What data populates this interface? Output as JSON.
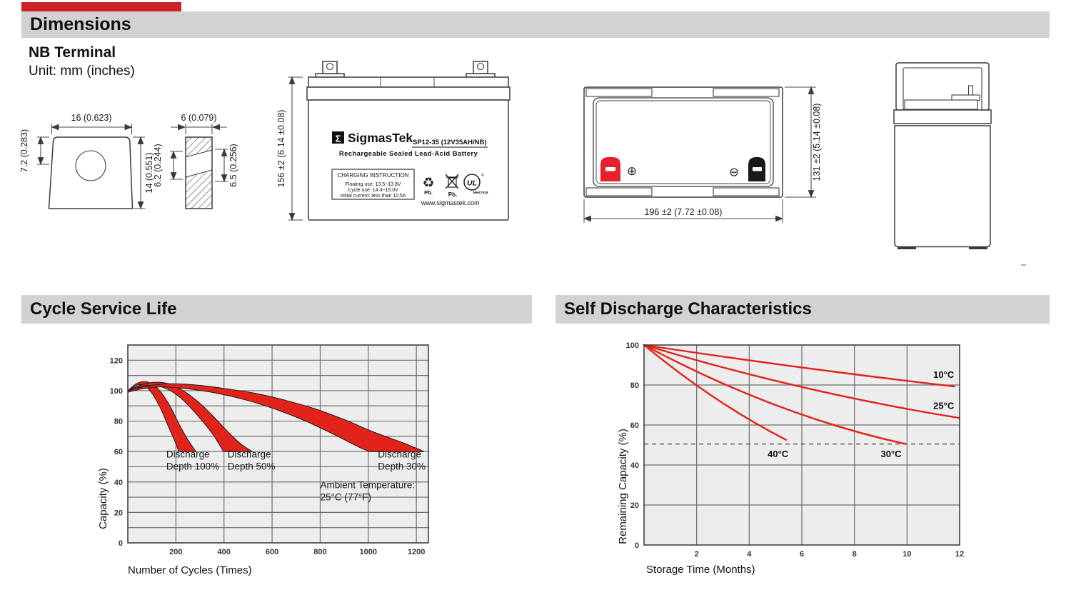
{
  "colors": {
    "accent_red": "#cb2128",
    "chart_red": "#e2231a",
    "terminal_red": "#e8202b",
    "header_bg": "#d2d2d2",
    "chart_bg": "#ededed",
    "grid": "#6e6e6e"
  },
  "sections": {
    "dimensions": "Dimensions",
    "cycle": "Cycle Service Life",
    "self_discharge": "Self Discharge Characteristics"
  },
  "dimensions": {
    "terminal_type": "NB Terminal",
    "unit_note": "Unit: mm (inches)",
    "terminal_front": {
      "top": "16 (0.623)",
      "left": "7.2 (0.283)",
      "right": "14 (0.551)"
    },
    "terminal_side": {
      "top": "6 (0.079)",
      "left": "6.2 (0.244)",
      "right": "6.5 (0.256)"
    },
    "front_view": {
      "height": "156 ±2 (6.14 ±0.08)",
      "logo_sigma": "Σ",
      "brand": "SigmasTek",
      "model": "SP12-35 (12V35AH/NB)",
      "subtitle": "Rechargeable Sealed Lead-Acid Battery",
      "charging_title": "CHARGING INSTRUCTION",
      "charging_lines": [
        "Floating use: 13.5~13.8V",
        "Cycle use: 14.4~15.0V",
        "Initial current: less than 10.5A"
      ],
      "recycle_mark": "♻",
      "pb_recycle": "Pb.",
      "pb_bin": "Pb.",
      "ul_mark": "UL",
      "ul_reg": "®",
      "ul_code": "MH47929",
      "website": "www.sigmastek.com"
    },
    "top_view": {
      "height": "131 ±2 (5.14 ±0.08)",
      "width": "196 ±2 (7.72 ±0.08)",
      "positive_mark": "⊕",
      "negative_mark": "⊖"
    }
  },
  "chart_data": [
    {
      "id": "cycle-service-life",
      "type": "area",
      "title": "Cycle Service Life",
      "xlabel": "Number of Cycles (Times)",
      "ylabel": "Capacity (%)",
      "xlim": [
        0,
        1250
      ],
      "ylim": [
        0,
        130
      ],
      "x_ticks": [
        200,
        400,
        600,
        800,
        1000,
        1200
      ],
      "y_ticks": [
        0,
        20,
        40,
        60,
        80,
        100,
        120
      ],
      "x_grid_step": 200,
      "y_grid_step": 10,
      "grid": true,
      "legend": false,
      "plot_bg": "#ededed",
      "grid_color": "#6e6e6e",
      "series": [
        {
          "name": "Discharge Depth 100%",
          "color": "#e2231a",
          "upper": [
            [
              0,
              100
            ],
            [
              35,
              104.5
            ],
            [
              70,
              106
            ],
            [
              105,
              104
            ],
            [
              140,
              98.5
            ],
            [
              175,
              90
            ],
            [
              210,
              79
            ],
            [
              245,
              69
            ],
            [
              283,
              60
            ]
          ],
          "lower": [
            [
              0,
              99
            ],
            [
              25,
              102.5
            ],
            [
              50,
              104
            ],
            [
              80,
              102
            ],
            [
              110,
              96
            ],
            [
              140,
              87
            ],
            [
              170,
              76
            ],
            [
              195,
              67
            ],
            [
              212,
              60
            ]
          ]
        },
        {
          "name": "Discharge Depth 50%",
          "color": "#e2231a",
          "upper": [
            [
              0,
              100
            ],
            [
              50,
              103.5
            ],
            [
              110,
              105.5
            ],
            [
              170,
              104.5
            ],
            [
              230,
              100
            ],
            [
              290,
              93
            ],
            [
              350,
              84
            ],
            [
              410,
              74
            ],
            [
              470,
              65
            ],
            [
              518,
              60
            ]
          ],
          "lower": [
            [
              0,
              99
            ],
            [
              40,
              102
            ],
            [
              90,
              103.5
            ],
            [
              150,
              102
            ],
            [
              210,
              96.5
            ],
            [
              260,
              89
            ],
            [
              310,
              80
            ],
            [
              355,
              71
            ],
            [
              398,
              60
            ]
          ]
        },
        {
          "name": "Discharge Depth 30%",
          "color": "#e2231a",
          "upper": [
            [
              0,
              100
            ],
            [
              80,
              103
            ],
            [
              180,
              104.5
            ],
            [
              300,
              103.5
            ],
            [
              420,
              101
            ],
            [
              540,
              98
            ],
            [
              660,
              93.5
            ],
            [
              780,
              88
            ],
            [
              900,
              81
            ],
            [
              1020,
              73
            ],
            [
              1140,
              66
            ],
            [
              1232,
              60
            ]
          ],
          "lower": [
            [
              0,
              99
            ],
            [
              70,
              101.5
            ],
            [
              150,
              102.5
            ],
            [
              260,
              101
            ],
            [
              380,
              98
            ],
            [
              500,
              93.5
            ],
            [
              620,
              87.5
            ],
            [
              740,
              80
            ],
            [
              860,
              71
            ],
            [
              960,
              63
            ],
            [
              1005,
              60
            ]
          ]
        }
      ],
      "annotations": [
        {
          "lines": [
            "Discharge",
            "Depth 100%"
          ],
          "x": 160,
          "y": 56
        },
        {
          "lines": [
            "Discharge",
            "Depth 50%"
          ],
          "x": 415,
          "y": 56
        },
        {
          "lines": [
            "Discharge",
            "Depth 30%"
          ],
          "x": 1040,
          "y": 56
        },
        {
          "lines": [
            "Ambient Temperature:",
            "25°C (77°F)"
          ],
          "x": 800,
          "y": 36
        }
      ]
    },
    {
      "id": "self-discharge",
      "type": "line",
      "title": "Self Discharge Characteristics",
      "xlabel": "Storage Time (Months)",
      "ylabel": "Remaining Capacity (%)",
      "xlim": [
        0,
        12
      ],
      "ylim": [
        0,
        100
      ],
      "x_ticks": [
        2,
        4,
        6,
        8,
        10,
        12
      ],
      "y_ticks": [
        0,
        20,
        40,
        60,
        80,
        100
      ],
      "x_grid_step": 2,
      "y_grid_step": 20,
      "grid": true,
      "legend": false,
      "plot_bg": "#ededed",
      "grid_color": "#6e6e6e",
      "dashed_line_y": 50.5,
      "series": [
        {
          "name": "10°C",
          "color": "#e2231a",
          "points": [
            [
              0,
              100
            ],
            [
              5.9,
              88.2
            ],
            [
              11.8,
              79.3
            ]
          ],
          "label_x": 11.0,
          "label_y": 83.5
        },
        {
          "name": "25°C",
          "color": "#e2231a",
          "points": [
            [
              0,
              100
            ],
            [
              6,
              76.2
            ],
            [
              12,
              63.5
            ]
          ],
          "label_x": 11.0,
          "label_y": 68
        },
        {
          "name": "30°C",
          "color": "#e2231a",
          "points": [
            [
              0,
              100
            ],
            [
              5,
              64.8
            ],
            [
              9.95,
              50.5
            ]
          ],
          "label_x": 9.0,
          "label_y": 44
        },
        {
          "name": "40°C",
          "color": "#e2231a",
          "points": [
            [
              0,
              100
            ],
            [
              2.7,
              70.7
            ],
            [
              5.4,
              52.6
            ]
          ],
          "label_x": 4.7,
          "label_y": 44
        }
      ]
    }
  ]
}
